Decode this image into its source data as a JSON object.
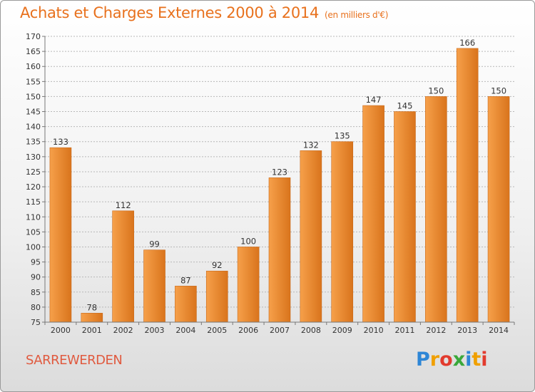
{
  "header": {
    "title": "Achats et Charges Externes 2000 à 2014",
    "subtitle": "(en milliers d'€)"
  },
  "location": {
    "name": "SARREWERDEN"
  },
  "brand": {
    "name": "Proxiti",
    "letters": [
      {
        "ch": "P",
        "color": "#2e86d6"
      },
      {
        "ch": "r",
        "color": "#f0a000"
      },
      {
        "ch": "o",
        "color": "#e23b2e"
      },
      {
        "ch": "x",
        "color": "#3aa83a"
      },
      {
        "ch": "i",
        "color": "#2e86d6"
      },
      {
        "ch": "t",
        "color": "#f0a000"
      },
      {
        "ch": "i",
        "color": "#e23b2e"
      }
    ]
  },
  "colors": {
    "title": "#e8711d",
    "bar_light": "#f6a04a",
    "bar_dark": "#d9741c",
    "bar_edge": "#c9691a",
    "city": "#e05a3f"
  },
  "chart_data": {
    "type": "bar",
    "title": "Achats et Charges Externes 2000 à 2014",
    "subtitle": "(en milliers d'€)",
    "categories": [
      "2000",
      "2001",
      "2002",
      "2003",
      "2004",
      "2005",
      "2006",
      "2007",
      "2008",
      "2009",
      "2010",
      "2011",
      "2012",
      "2013",
      "2014"
    ],
    "values": [
      133,
      78,
      112,
      99,
      87,
      92,
      100,
      123,
      132,
      135,
      147,
      145,
      150,
      166,
      150
    ],
    "xlabel": "",
    "ylabel": "",
    "ylim": [
      75,
      170
    ],
    "yticks": [
      75,
      80,
      85,
      90,
      95,
      100,
      105,
      110,
      115,
      120,
      125,
      130,
      135,
      140,
      145,
      150,
      155,
      160,
      165,
      170
    ],
    "grid": "horizontal-dashed"
  }
}
